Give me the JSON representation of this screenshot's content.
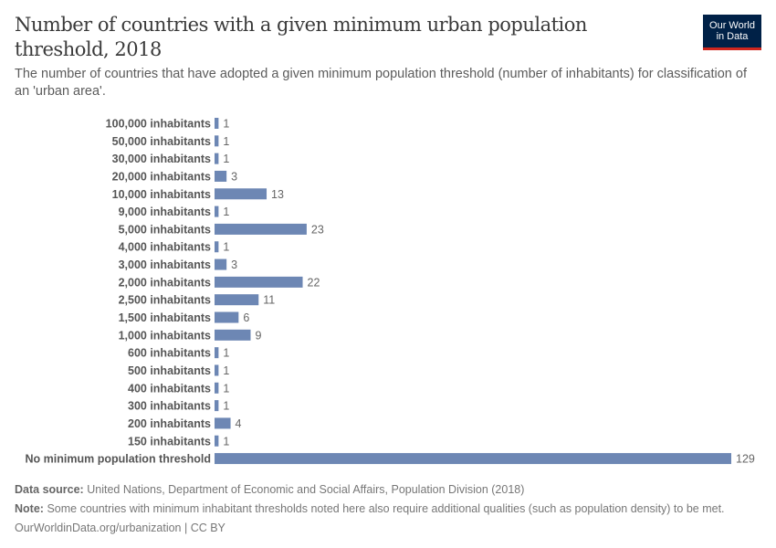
{
  "chart_data": {
    "type": "bar",
    "orientation": "horizontal",
    "title": "Number of countries with a given minimum urban population threshold, 2018",
    "subtitle": "The number of countries that have adopted a given minimum population threshold (number of inhabitants) for classification of an 'urban area'.",
    "categories": [
      "100,000 inhabitants",
      "50,000 inhabitants",
      "30,000 inhabitants",
      "20,000 inhabitants",
      "10,000 inhabitants",
      "9,000 inhabitants",
      "5,000 inhabitants",
      "4,000 inhabitants",
      "3,000 inhabitants",
      "2,000 inhabitants",
      "2,500 inhabitants",
      "1,500 inhabitants",
      "1,000 inhabitants",
      "600 inhabitants",
      "500 inhabitants",
      "400 inhabitants",
      "300 inhabitants",
      "200 inhabitants",
      "150 inhabitants",
      "No minimum population threshold"
    ],
    "values": [
      1,
      1,
      1,
      3,
      13,
      1,
      23,
      1,
      3,
      22,
      11,
      6,
      9,
      1,
      1,
      1,
      1,
      4,
      1,
      129
    ],
    "xlim": [
      0,
      129
    ],
    "grid": false,
    "bar_color": "#6d87b4"
  },
  "logo": {
    "line1": "Our World",
    "line2": "in Data"
  },
  "footer": {
    "source_label": "Data source:",
    "source": "United Nations, Department of Economic and Social Affairs, Population Division (2018)",
    "note_label": "Note:",
    "note": "Some countries with minimum inhabitant thresholds noted here also require additional qualities (such as population density) to be met.",
    "url": "OurWorldinData.org/urbanization | CC BY"
  }
}
